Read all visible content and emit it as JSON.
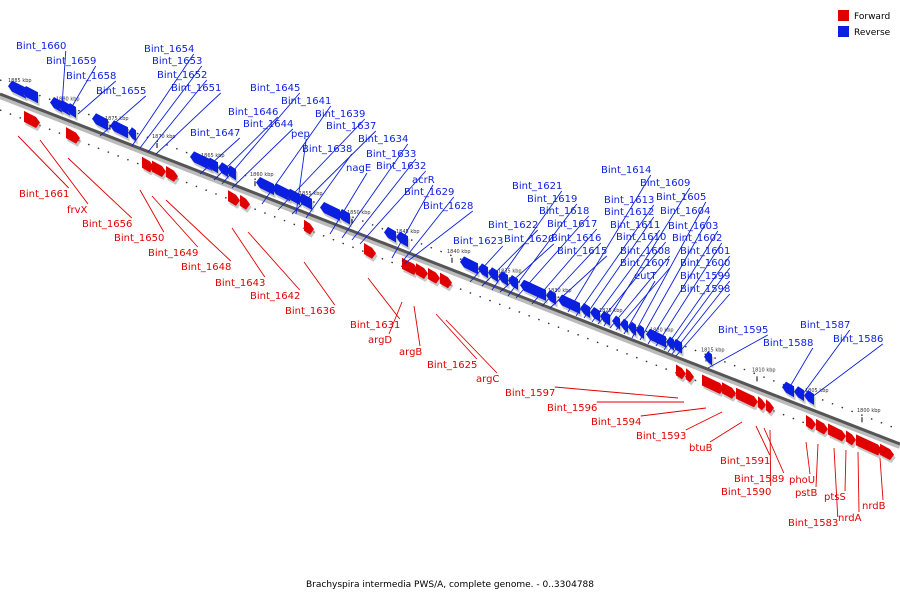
{
  "colors": {
    "forward": "#e00000",
    "reverse": "#0a1fe0",
    "axis": "#555555"
  },
  "legend": [
    {
      "label": "Forward",
      "color": "#e00000"
    },
    {
      "label": "Reverse",
      "color": "#0a1fe0"
    }
  ],
  "caption": "Brachyspira intermedia PWS/A, complete genome. - 0..3304788",
  "ticks": [
    "1885 kbp",
    "1880 kbp",
    "1875 kbp",
    "1870 kbp",
    "1865 kbp",
    "1860 kbp",
    "1855 kbp",
    "1850 kbp",
    "1845 kbp",
    "1840 kbp",
    "1835 kbp",
    "1830 kbp",
    "1825 kbp",
    "1820 kbp",
    "1815 kbp",
    "1810 kbp",
    "1805 kbp",
    "1800 kbp"
  ],
  "reverse_labels": [
    "Bint_1660",
    "Bint_1659",
    "Bint_1658",
    "Bint_1655",
    "Bint_1654",
    "Bint_1653",
    "Bint_1652",
    "Bint_1651",
    "Bint_1647",
    "Bint_1646",
    "Bint_1645",
    "Bint_1644",
    "Bint_1641",
    "Bint_1639",
    "Bint_1637",
    "Bint_1638",
    "pep",
    "nagE",
    "Bint_1634",
    "Bint_1633",
    "Bint_1632",
    "acrR",
    "Bint_1629",
    "Bint_1628",
    "Bint_1623",
    "Bint_1622",
    "Bint_1621",
    "Bint_1620",
    "Bint_1619",
    "Bint_1618",
    "Bint_1617",
    "Bint_1616",
    "Bint_1615",
    "Bint_1614",
    "Bint_1613",
    "Bint_1612",
    "Bint_1611",
    "Bint_1610",
    "Bint_1609",
    "Bint_1608",
    "Bint_1607",
    "eutT",
    "Bint_1605",
    "Bint_1604",
    "Bint_1603",
    "Bint_1602",
    "Bint_1601",
    "Bint_1600",
    "Bint_1599",
    "Bint_1598",
    "Bint_1595",
    "Bint_1588",
    "Bint_1587",
    "Bint_1586"
  ],
  "forward_labels": [
    "Bint_1661",
    "frvX",
    "Bint_1656",
    "Bint_1650",
    "Bint_1649",
    "Bint_1648",
    "Bint_1643",
    "Bint_1642",
    "Bint_1636",
    "Bint_1631",
    "argD",
    "argB",
    "Bint_1625",
    "argC",
    "Bint_1597",
    "Bint_1596",
    "Bint_1594",
    "Bint_1593",
    "btuB",
    "Bint_1591",
    "Bint_1589",
    "Bint_1590",
    "phoU",
    "pstB",
    "Bint_1583",
    "ptsS",
    "nrdA",
    "nrdB"
  ]
}
